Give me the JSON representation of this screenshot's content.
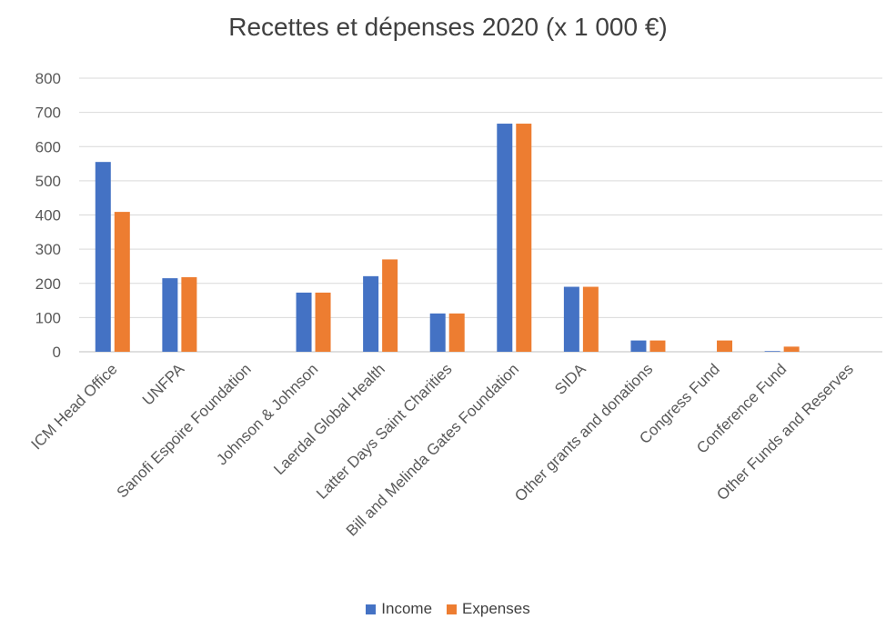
{
  "chart_data": {
    "type": "bar",
    "title": "Recettes et dépenses 2020 (x 1 000 €)",
    "xlabel": "",
    "ylabel": "",
    "ylim": [
      0,
      800
    ],
    "yticks": [
      0,
      100,
      200,
      300,
      400,
      500,
      600,
      700,
      800
    ],
    "grid": true,
    "legend_position": "bottom",
    "categories": [
      "ICM Head Office",
      "UNFPA",
      "Sanofi Espoire Foundation",
      "Johnson & Johnson",
      "Laerdal Global Health",
      "Latter Days Saint Charities",
      "Bill and Melinda Gates Foundation",
      "SIDA",
      "Other grants and donations",
      "Congress Fund",
      "Conference Fund",
      "Other Funds and Reserves"
    ],
    "series": [
      {
        "name": "Income",
        "color": "#4472c4",
        "values": [
          555,
          215,
          0,
          173,
          221,
          112,
          667,
          190,
          33,
          0,
          2,
          0
        ]
      },
      {
        "name": "Expenses",
        "color": "#ed7d31",
        "values": [
          409,
          218,
          0,
          173,
          270,
          112,
          667,
          190,
          33,
          33,
          15,
          0
        ]
      }
    ]
  }
}
